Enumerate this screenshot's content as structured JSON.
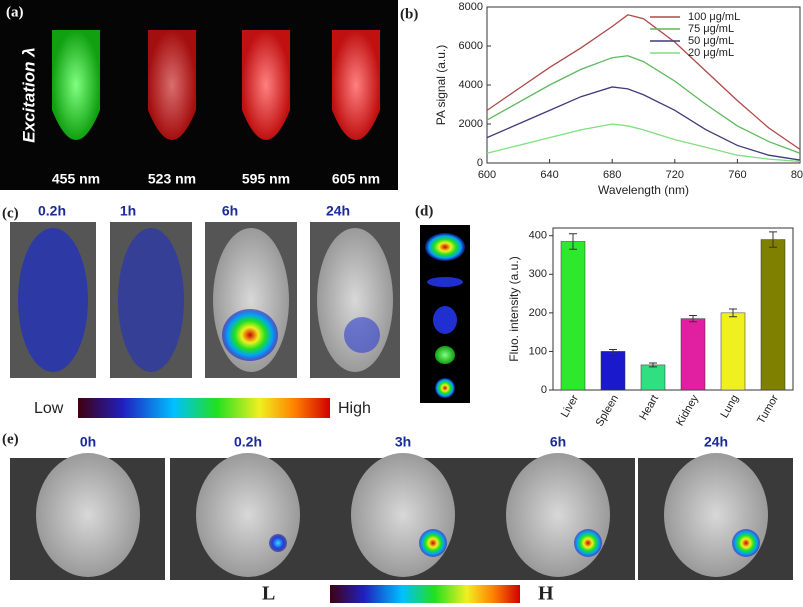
{
  "panel_a": {
    "label": "(a)",
    "excitation": "Excitation λ",
    "wavelengths": [
      "455 nm",
      "523 nm",
      "595 nm",
      "605 nm"
    ]
  },
  "panel_b": {
    "label": "(b)"
  },
  "panel_c": {
    "label": "(c)",
    "times": [
      "0.2h",
      "1h",
      "6h",
      "24h"
    ],
    "scale_low": "Low",
    "scale_high": "High"
  },
  "panel_d": {
    "label": "(d)"
  },
  "panel_e": {
    "label": "(e)",
    "times": [
      "0h",
      "0.2h",
      "3h",
      "6h",
      "24h"
    ],
    "scale_low": "L",
    "scale_high": "H"
  },
  "chart_data": [
    {
      "type": "line",
      "xlabel": "Wavelength (nm)",
      "ylabel": "PA signal (a.u.)",
      "x": [
        600,
        620,
        640,
        660,
        680,
        690,
        700,
        720,
        740,
        760,
        780,
        800
      ],
      "xlim": [
        600,
        800
      ],
      "xticks": [
        600,
        640,
        680,
        720,
        760,
        800
      ],
      "ylim": [
        0,
        8000
      ],
      "yticks": [
        0,
        2000,
        4000,
        6000,
        8000
      ],
      "legend": "upper right",
      "series": [
        {
          "name": "100 μg/mL",
          "color": "#b04848",
          "values": [
            2700,
            3800,
            4900,
            5900,
            7000,
            7600,
            7400,
            6200,
            4700,
            3200,
            1800,
            700
          ]
        },
        {
          "name": "75 μg/mL",
          "color": "#5cb85c",
          "values": [
            2200,
            3100,
            4000,
            4800,
            5400,
            5500,
            5200,
            4200,
            3000,
            1900,
            1100,
            500
          ]
        },
        {
          "name": "50 μg/mL",
          "color": "#3c3c7c",
          "values": [
            1300,
            2000,
            2700,
            3400,
            3900,
            3800,
            3500,
            2700,
            1700,
            900,
            400,
            150
          ]
        },
        {
          "name": "20 μg/mL",
          "color": "#7ee07e",
          "values": [
            500,
            900,
            1300,
            1700,
            2000,
            1900,
            1700,
            1200,
            800,
            400,
            200,
            80
          ]
        }
      ]
    },
    {
      "type": "bar",
      "ylabel": "Fluo. intensity (a.u.)",
      "categories": [
        "Liver",
        "Spleen",
        "Heart",
        "Kidney",
        "Lung",
        "Tumor"
      ],
      "values": [
        385,
        100,
        65,
        185,
        200,
        390
      ],
      "errors": [
        20,
        5,
        5,
        8,
        10,
        20
      ],
      "colors": [
        "#2ee82e",
        "#1a1acc",
        "#30e080",
        "#e020a0",
        "#f0f020",
        "#808000"
      ],
      "ylim": [
        0,
        420
      ],
      "yticks": [
        0,
        100,
        200,
        300,
        400
      ]
    }
  ]
}
